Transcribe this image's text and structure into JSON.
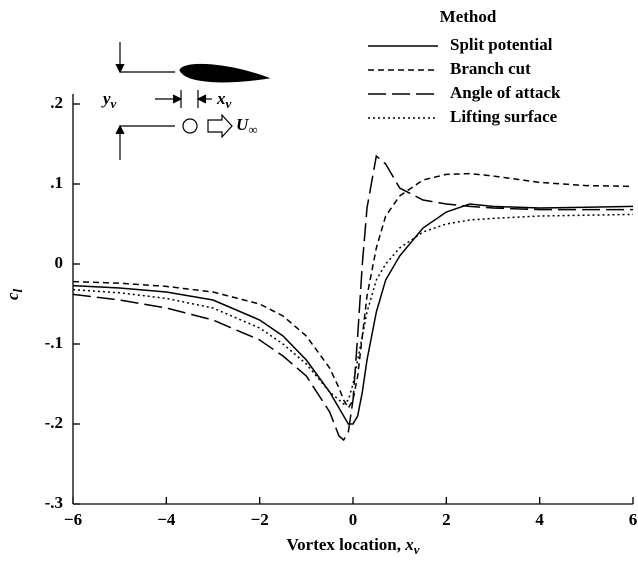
{
  "chart_data": {
    "type": "line",
    "x_label": {
      "main": "Vortex location, ",
      "var": "x",
      "sub": "v"
    },
    "y_label": {
      "var": "c",
      "sub": "l"
    },
    "legend_title": "Method",
    "legend": "top-right",
    "annotations": {
      "y_var": {
        "var": "y",
        "sub": "v"
      },
      "x_var": {
        "var": "x",
        "sub": "v"
      },
      "u_var": {
        "var": "U",
        "sub": "∞"
      }
    },
    "x": [
      -6,
      -5,
      -4,
      -3,
      -2,
      -1.5,
      -1,
      -0.5,
      -0.3,
      -0.2,
      -0.1,
      0,
      0.1,
      0.2,
      0.3,
      0.5,
      0.7,
      1,
      1.5,
      2,
      2.5,
      3,
      4,
      5,
      6
    ],
    "series": [
      {
        "name": "Split potential",
        "color": "#000000",
        "dash": "none",
        "values": [
          -0.027,
          -0.03,
          -0.035,
          -0.045,
          -0.07,
          -0.09,
          -0.12,
          -0.16,
          -0.18,
          -0.19,
          -0.2,
          -0.2,
          -0.19,
          -0.16,
          -0.12,
          -0.06,
          -0.02,
          0.01,
          0.045,
          0.065,
          0.075,
          0.072,
          0.07,
          0.071,
          0.072
        ]
      },
      {
        "name": "Branch cut",
        "color": "#000000",
        "dash": "6,4",
        "values": [
          -0.022,
          -0.024,
          -0.028,
          -0.035,
          -0.05,
          -0.065,
          -0.09,
          -0.13,
          -0.155,
          -0.17,
          -0.18,
          -0.17,
          -0.14,
          -0.09,
          -0.04,
          0.02,
          0.06,
          0.085,
          0.105,
          0.112,
          0.113,
          0.11,
          0.102,
          0.098,
          0.097
        ]
      },
      {
        "name": "Angle of attack",
        "color": "#000000",
        "dash": "18,6",
        "values": [
          -0.038,
          -0.045,
          -0.055,
          -0.07,
          -0.095,
          -0.115,
          -0.14,
          -0.185,
          -0.215,
          -0.22,
          -0.21,
          -0.17,
          -0.09,
          0.0,
          0.07,
          0.135,
          0.125,
          0.095,
          0.08,
          0.075,
          0.072,
          0.07,
          0.068,
          0.068,
          0.068
        ]
      },
      {
        "name": "Lifting surface",
        "color": "#000000",
        "dash": "2,3",
        "values": [
          -0.032,
          -0.036,
          -0.043,
          -0.055,
          -0.08,
          -0.1,
          -0.125,
          -0.16,
          -0.17,
          -0.175,
          -0.17,
          -0.15,
          -0.12,
          -0.09,
          -0.06,
          -0.02,
          0.0,
          0.02,
          0.04,
          0.05,
          0.055,
          0.057,
          0.06,
          0.061,
          0.062
        ]
      }
    ],
    "xlim": [
      -6,
      6
    ],
    "xticks": [
      {
        "value": -6,
        "label": "−6"
      },
      {
        "value": -4,
        "label": "−4"
      },
      {
        "value": -2,
        "label": "−2"
      },
      0,
      2,
      4,
      6
    ],
    "ylim": [
      -0.3,
      0.2
    ],
    "yticks": [
      {
        "value": -0.3,
        "label": "-.3"
      },
      {
        "value": -0.2,
        "label": "-.2"
      },
      {
        "value": -0.1,
        "label": "-.1"
      },
      0,
      {
        "value": 0.1,
        "label": ".1"
      },
      {
        "value": 0.2,
        "label": ".2"
      }
    ],
    "grid": false
  }
}
